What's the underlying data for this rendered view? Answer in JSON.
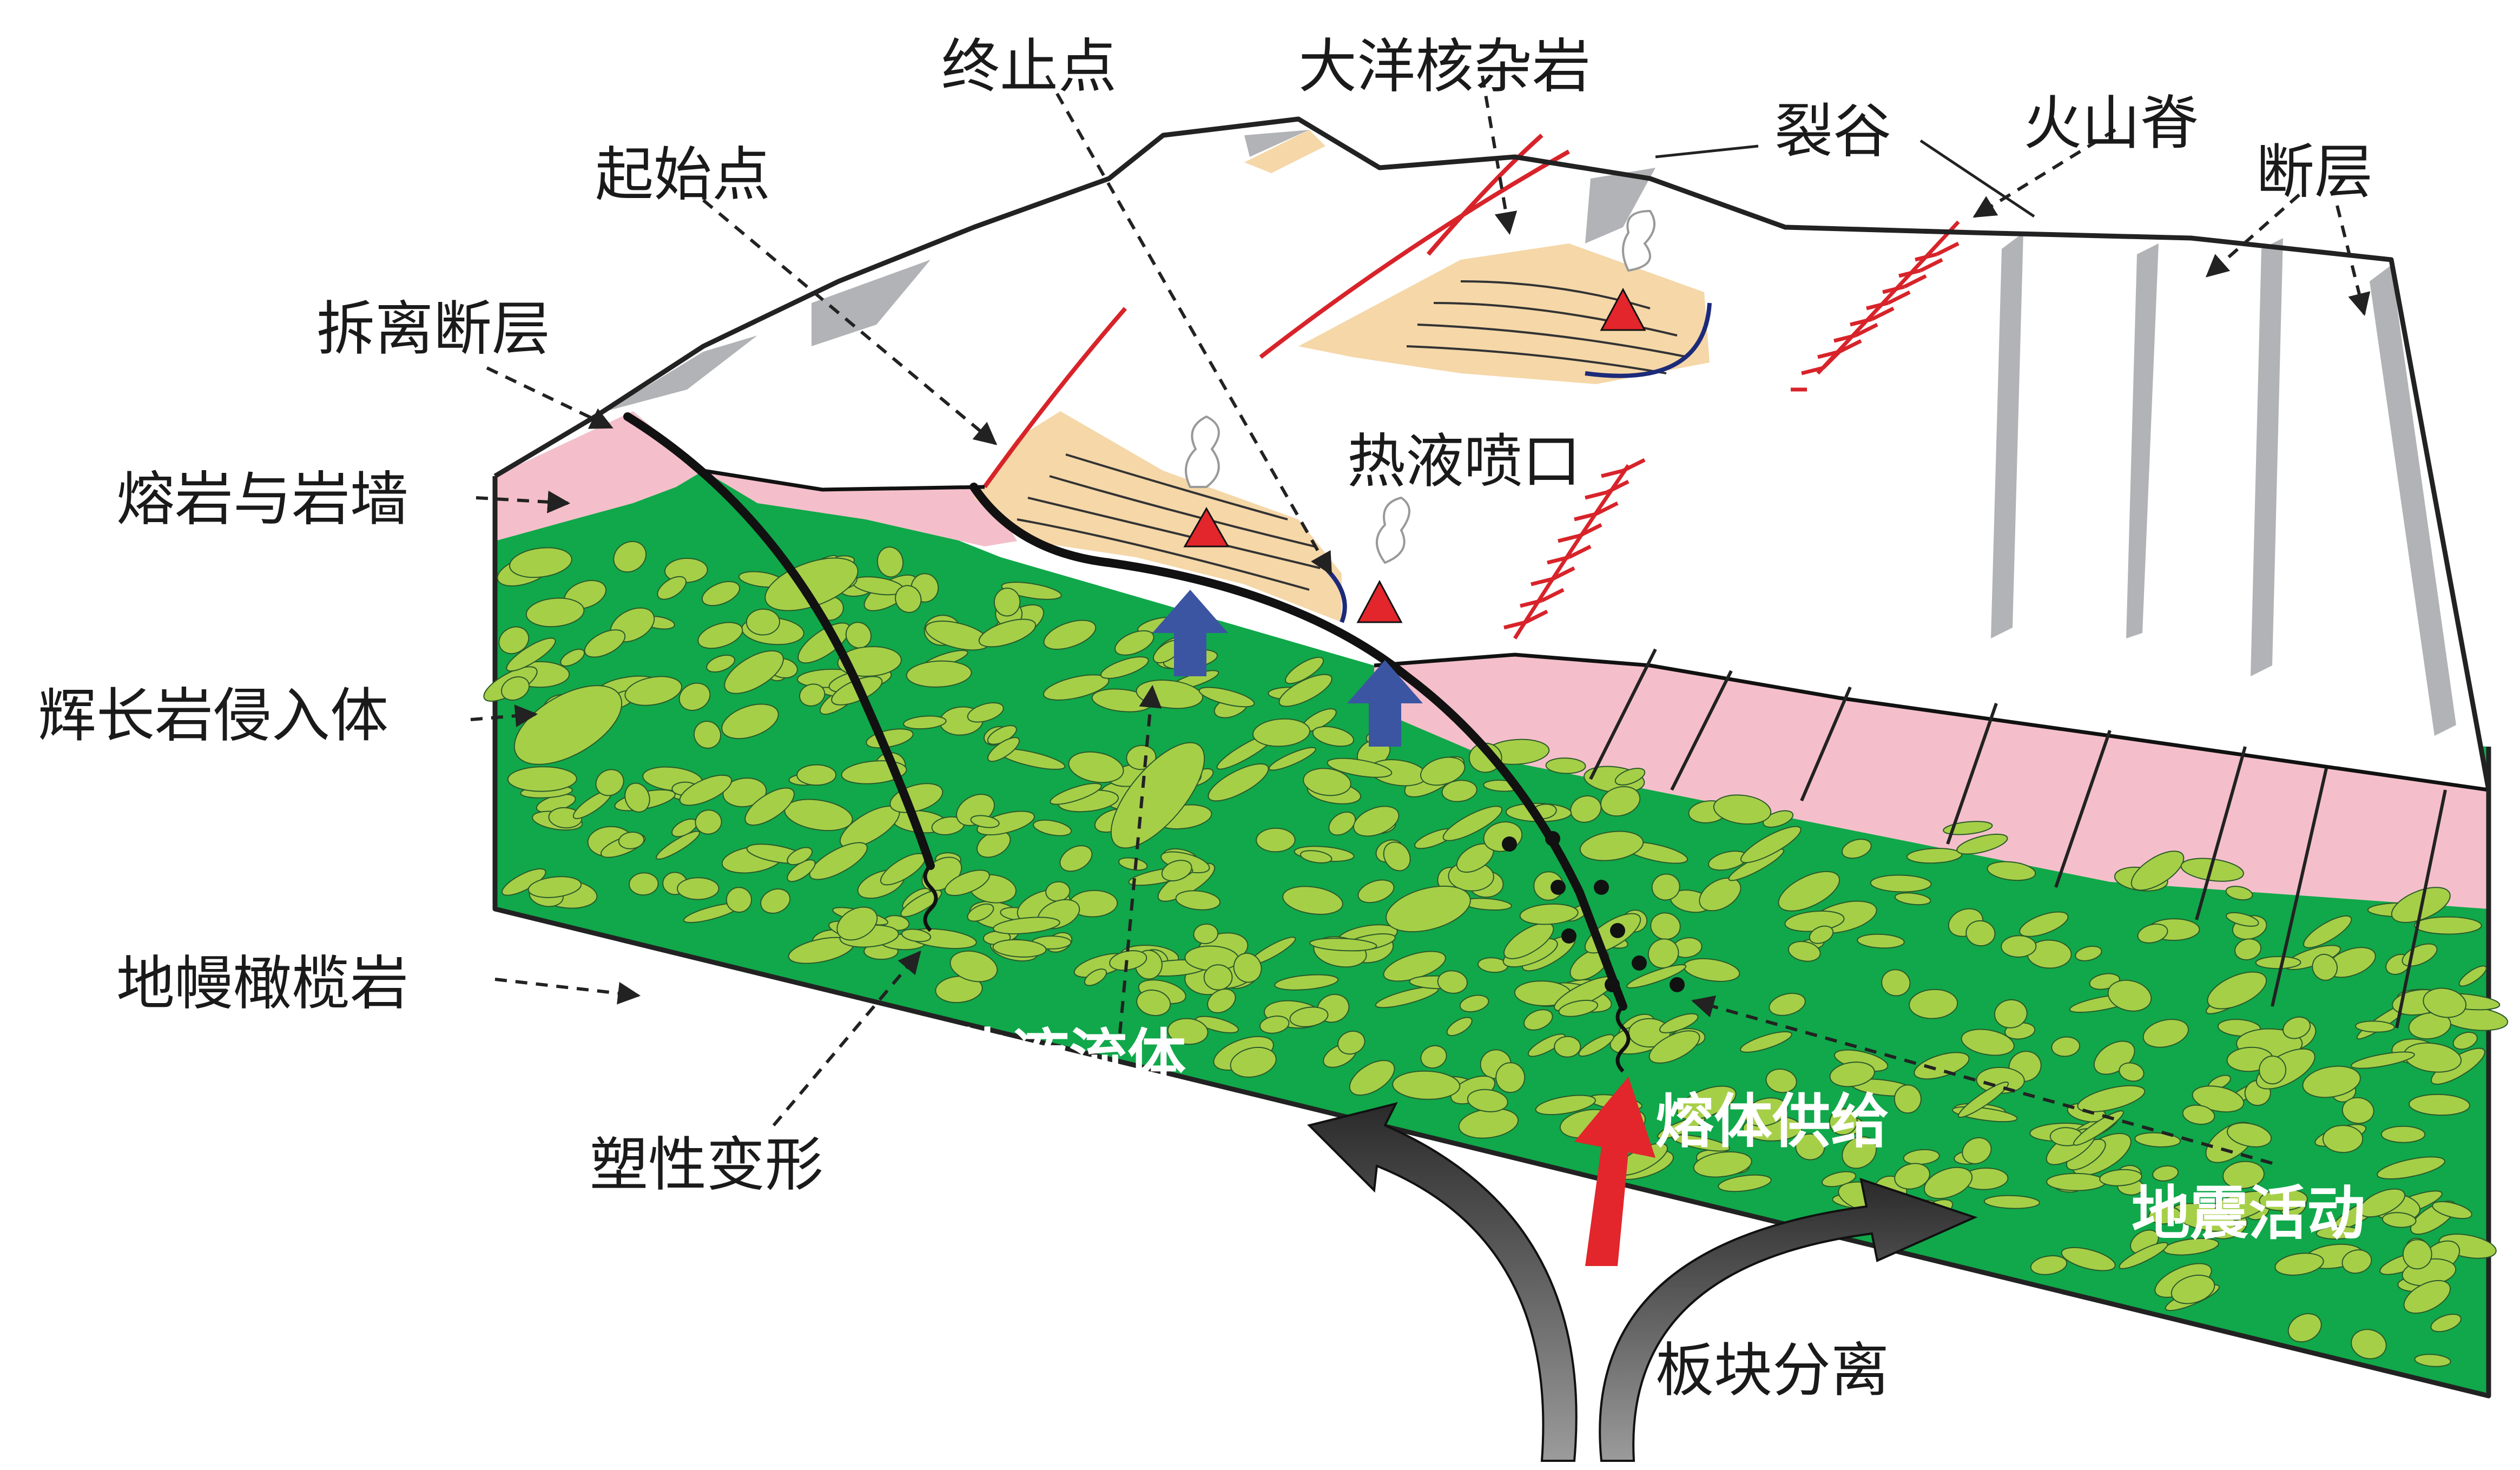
{
  "labels": {
    "termination_point": "终止点",
    "oceanic_core_complex": "大洋核杂岩",
    "rift_valley": "裂谷",
    "volcanic_ridge": "火山脊",
    "fault": "断层",
    "start_point": "起始点",
    "detachment_fault": "拆离断层",
    "lava_and_dikes": "熔岩与岩墙",
    "hydrothermal_vent": "热液喷口",
    "gabbro_intrusion": "辉长岩侵入体",
    "mantle_peridotite": "地幔橄榄岩",
    "hydrothermal_fluid": "热液流体",
    "plastic_deformation": "塑性变形",
    "melt_supply": "熔体供给",
    "seismic_activity": "地震活动",
    "plate_separation": "板块分离"
  },
  "colors": {
    "mantle": "#10a84a",
    "gabbro": "#a6cf48",
    "lava_layer": "#f4bfca",
    "seafloor": "#ffffff",
    "fault_shadow": "#b1b3b6",
    "core_complex": "#f5d7a8",
    "vent": "#e2262b",
    "fluid_arrow": "#3b55a3",
    "melt_arrow": "#e2262b",
    "plate_arrow": "#222222"
  }
}
